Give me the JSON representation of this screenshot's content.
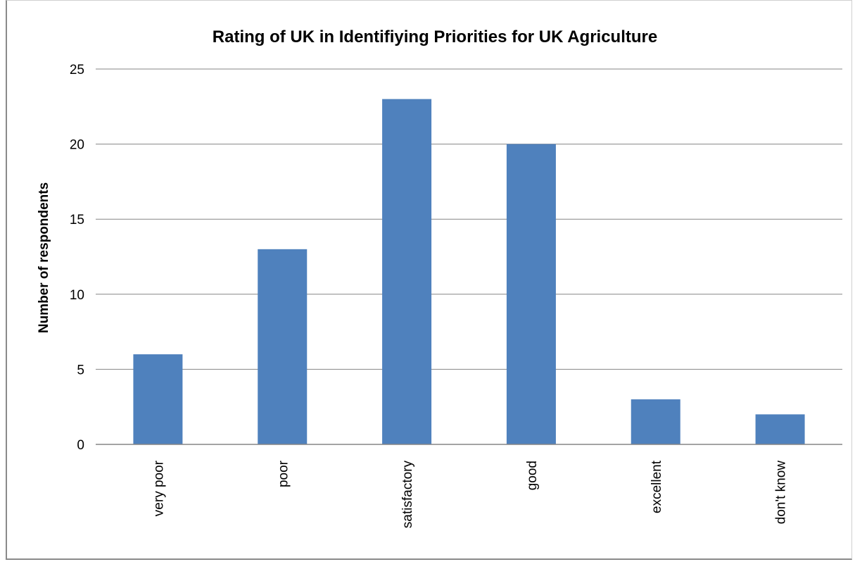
{
  "chart_data": {
    "type": "bar",
    "title": "Rating of UK in Identifiying Priorities for UK Agriculture",
    "xlabel": "",
    "ylabel": "Number of respondents",
    "categories": [
      "very poor",
      "poor",
      "satisfactory",
      "good",
      "excellent",
      "don't know"
    ],
    "values": [
      6,
      13,
      23,
      20,
      3,
      2
    ],
    "ylim": [
      0,
      25
    ],
    "yticks": [
      0,
      5,
      10,
      15,
      20,
      25
    ],
    "grid": true,
    "legend": "none",
    "bar_color": "#4f81bd",
    "grid_color": "#868686"
  }
}
